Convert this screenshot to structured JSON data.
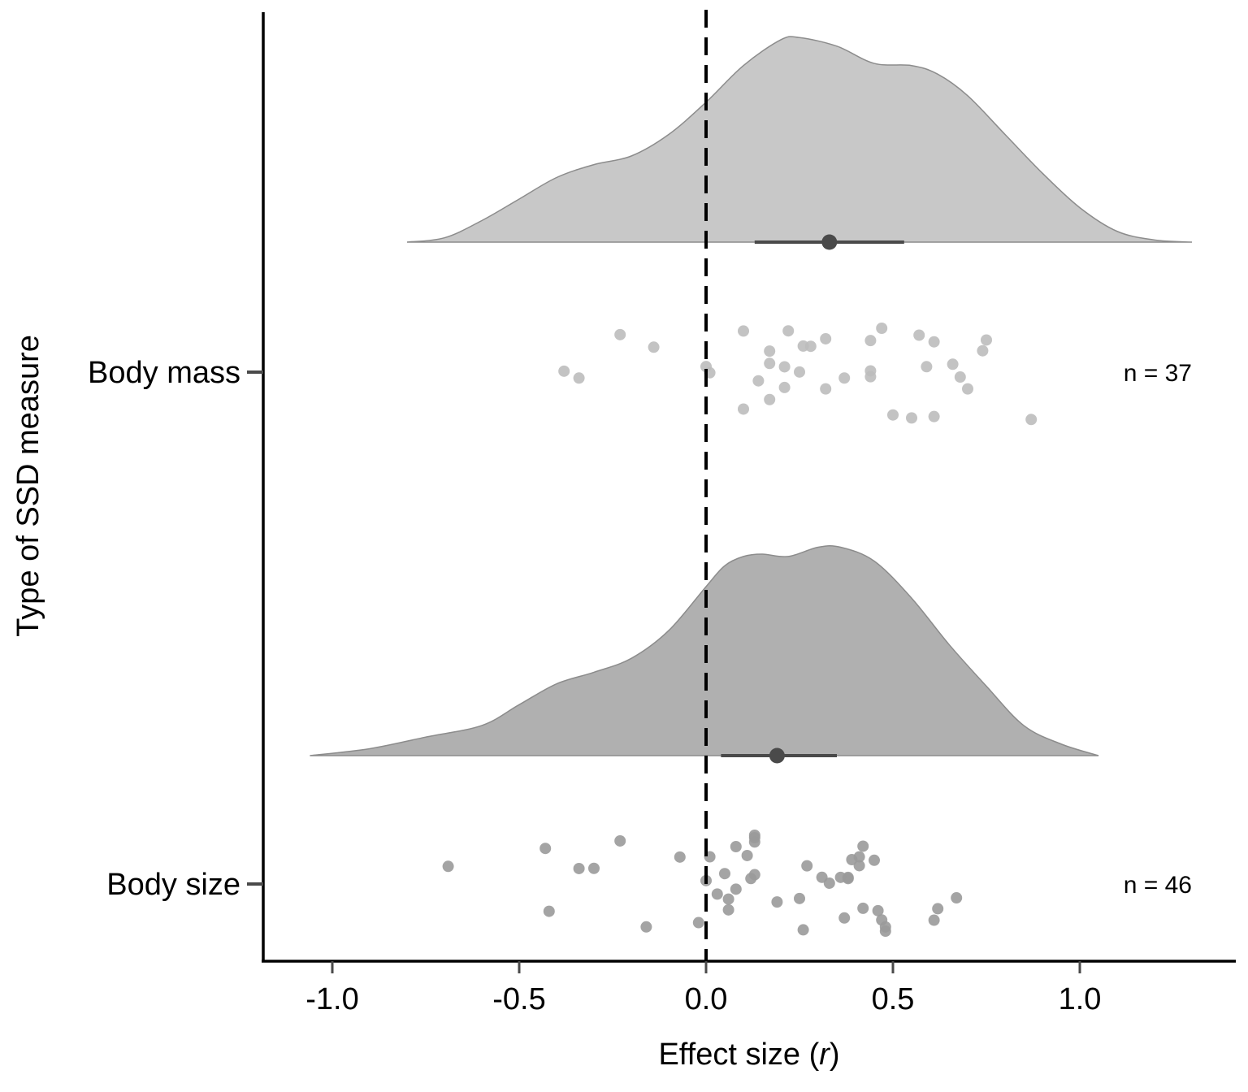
{
  "chart_data": {
    "type": "raincloud",
    "title": "",
    "xlabel_prefix": "Effect size (",
    "xlabel_italic": "r",
    "xlabel_suffix": ")",
    "ylabel": "Type of SSD measure",
    "xlim": [
      -1.18,
      1.4
    ],
    "xticks": [
      -1.0,
      -0.5,
      0.0,
      0.5,
      1.0
    ],
    "xtick_labels": [
      "-1.0",
      "-0.5",
      "0.0",
      "0.5",
      "1.0"
    ],
    "reference_line": 0.0,
    "groups": [
      {
        "name": "Body mass",
        "n_label": "n = 37",
        "fill": "#c8c8c8",
        "point_color": "#bdbdbd",
        "mean": 0.33,
        "ci": [
          0.13,
          0.53
        ],
        "density": [
          [
            -0.8,
            0.0
          ],
          [
            -0.7,
            0.02
          ],
          [
            -0.6,
            0.1
          ],
          [
            -0.5,
            0.2
          ],
          [
            -0.4,
            0.3
          ],
          [
            -0.3,
            0.36
          ],
          [
            -0.2,
            0.4
          ],
          [
            -0.1,
            0.5
          ],
          [
            0.0,
            0.65
          ],
          [
            0.1,
            0.82
          ],
          [
            0.2,
            0.94
          ],
          [
            0.25,
            0.95
          ],
          [
            0.35,
            0.91
          ],
          [
            0.45,
            0.83
          ],
          [
            0.55,
            0.82
          ],
          [
            0.62,
            0.78
          ],
          [
            0.7,
            0.68
          ],
          [
            0.8,
            0.5
          ],
          [
            0.9,
            0.32
          ],
          [
            1.0,
            0.16
          ],
          [
            1.1,
            0.05
          ],
          [
            1.2,
            0.01
          ],
          [
            1.3,
            0.0
          ]
        ],
        "values": [
          -0.38,
          -0.34,
          -0.23,
          -0.14,
          0.0,
          0.01,
          0.1,
          0.1,
          0.14,
          0.17,
          0.17,
          0.17,
          0.21,
          0.22,
          0.25,
          0.28,
          0.32,
          0.32,
          0.37,
          0.44,
          0.44,
          0.47,
          0.5,
          0.55,
          0.57,
          0.59,
          0.61,
          0.61,
          0.66,
          0.68,
          0.7,
          0.74,
          0.75,
          0.87,
          0.21,
          0.26,
          0.44
        ]
      },
      {
        "name": "Body size",
        "n_label": "n = 46",
        "fill": "#b0b0b0",
        "point_color": "#9a9a9a",
        "mean": 0.19,
        "ci": [
          0.04,
          0.35
        ],
        "density": [
          [
            -1.06,
            0.0
          ],
          [
            -0.9,
            0.03
          ],
          [
            -0.75,
            0.08
          ],
          [
            -0.6,
            0.13
          ],
          [
            -0.5,
            0.22
          ],
          [
            -0.4,
            0.31
          ],
          [
            -0.3,
            0.36
          ],
          [
            -0.2,
            0.42
          ],
          [
            -0.1,
            0.54
          ],
          [
            0.0,
            0.73
          ],
          [
            0.05,
            0.82
          ],
          [
            0.1,
            0.86
          ],
          [
            0.15,
            0.87
          ],
          [
            0.22,
            0.86
          ],
          [
            0.3,
            0.9
          ],
          [
            0.36,
            0.9
          ],
          [
            0.45,
            0.84
          ],
          [
            0.55,
            0.68
          ],
          [
            0.65,
            0.48
          ],
          [
            0.75,
            0.3
          ],
          [
            0.85,
            0.13
          ],
          [
            0.95,
            0.05
          ],
          [
            1.05,
            0.0
          ]
        ],
        "values": [
          -0.69,
          -0.43,
          -0.42,
          -0.34,
          -0.3,
          -0.23,
          -0.16,
          -0.07,
          -0.02,
          0.0,
          0.01,
          0.03,
          0.05,
          0.06,
          0.06,
          0.08,
          0.11,
          0.12,
          0.13,
          0.13,
          0.13,
          0.19,
          0.25,
          0.26,
          0.27,
          0.31,
          0.33,
          0.36,
          0.37,
          0.38,
          0.38,
          0.39,
          0.41,
          0.42,
          0.42,
          0.45,
          0.46,
          0.47,
          0.48,
          0.48,
          0.61,
          0.62,
          0.67,
          0.08,
          0.13,
          0.41
        ]
      }
    ]
  }
}
